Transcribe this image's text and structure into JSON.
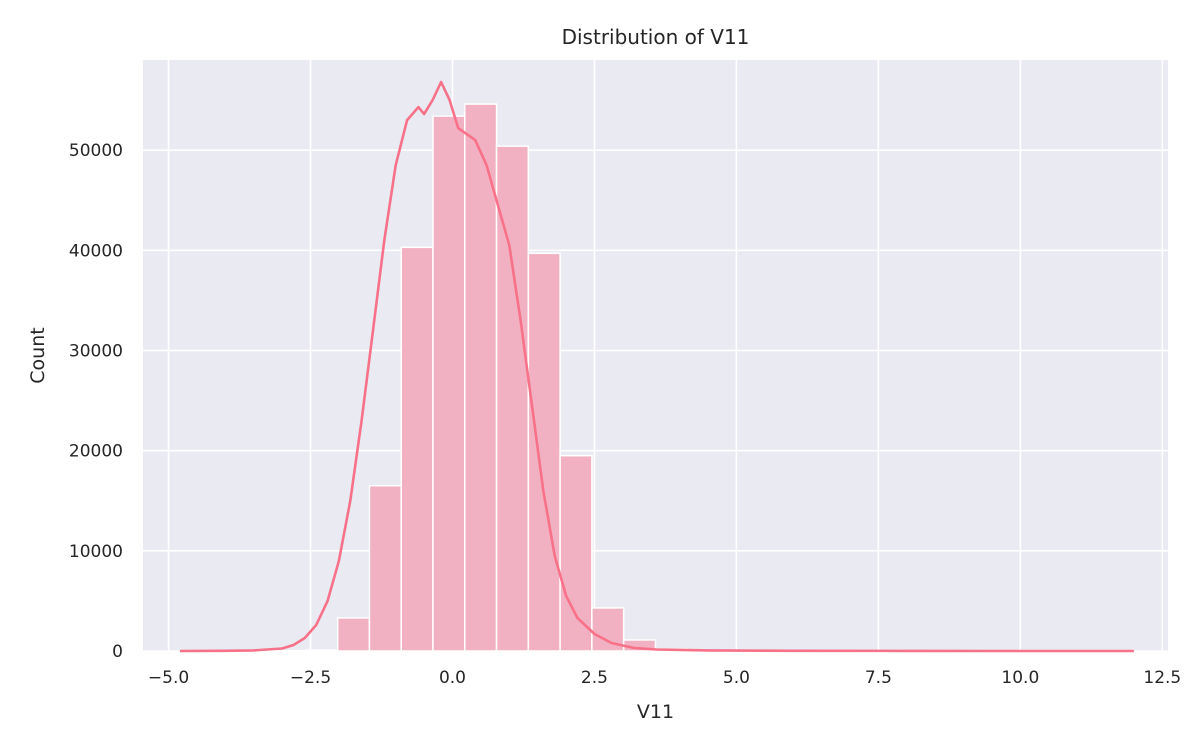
{
  "chart_data": {
    "type": "histogram",
    "title": "Distribution of V11",
    "xlabel": "V11",
    "ylabel": "Count",
    "xlim": [
      -5.45,
      12.6
    ],
    "ylim": [
      0,
      59000
    ],
    "grid": true,
    "x_ticks": [
      {
        "value": -5.0,
        "label": "−5.0"
      },
      {
        "value": -2.5,
        "label": "−2.5"
      },
      {
        "value": 0.0,
        "label": "0.0"
      },
      {
        "value": 2.5,
        "label": "2.5"
      },
      {
        "value": 5.0,
        "label": "5.0"
      },
      {
        "value": 7.5,
        "label": "7.5"
      },
      {
        "value": 10.0,
        "label": "10.0"
      },
      {
        "value": 12.5,
        "label": "12.5"
      }
    ],
    "y_ticks": [
      {
        "value": 0,
        "label": "0"
      },
      {
        "value": 10000,
        "label": "10000"
      },
      {
        "value": 20000,
        "label": "20000"
      },
      {
        "value": 30000,
        "label": "30000"
      },
      {
        "value": 40000,
        "label": "40000"
      },
      {
        "value": 50000,
        "label": "50000"
      }
    ],
    "bin_start": -4.82,
    "bin_width": 0.5596,
    "counts": [
      0,
      0,
      0,
      20,
      100,
      3300,
      16500,
      40300,
      53400,
      54600,
      50400,
      39700,
      19500,
      4300,
      1100,
      200,
      60,
      30,
      20,
      15,
      10,
      8,
      6,
      5,
      4,
      3,
      2,
      2,
      1,
      1
    ],
    "kde": [
      [
        -4.8,
        0
      ],
      [
        -4.0,
        20
      ],
      [
        -3.5,
        60
      ],
      [
        -3.0,
        250
      ],
      [
        -2.8,
        600
      ],
      [
        -2.6,
        1300
      ],
      [
        -2.4,
        2600
      ],
      [
        -2.2,
        5000
      ],
      [
        -2.0,
        9000
      ],
      [
        -1.8,
        15000
      ],
      [
        -1.6,
        23000
      ],
      [
        -1.4,
        32000
      ],
      [
        -1.2,
        41000
      ],
      [
        -1.0,
        48500
      ],
      [
        -0.8,
        53000
      ],
      [
        -0.6,
        54300
      ],
      [
        -0.5,
        53600
      ],
      [
        -0.35,
        55000
      ],
      [
        -0.2,
        56800
      ],
      [
        -0.05,
        55000
      ],
      [
        0.1,
        52200
      ],
      [
        0.2,
        51800
      ],
      [
        0.4,
        51000
      ],
      [
        0.6,
        48500
      ],
      [
        0.8,
        44500
      ],
      [
        1.0,
        40500
      ],
      [
        1.2,
        33000
      ],
      [
        1.4,
        24500
      ],
      [
        1.6,
        16000
      ],
      [
        1.8,
        9500
      ],
      [
        2.0,
        5500
      ],
      [
        2.2,
        3300
      ],
      [
        2.5,
        1700
      ],
      [
        2.8,
        800
      ],
      [
        3.2,
        300
      ],
      [
        3.6,
        150
      ],
      [
        4.5,
        60
      ],
      [
        6.0,
        20
      ],
      [
        8.0,
        8
      ],
      [
        10.0,
        4
      ],
      [
        12.0,
        0
      ]
    ],
    "colors": {
      "background": "#eaeaf2",
      "grid": "#ffffff",
      "bar_fill": "#f2b1c2",
      "bar_edge": "#ffffff",
      "kde_line": "#f77189"
    }
  }
}
